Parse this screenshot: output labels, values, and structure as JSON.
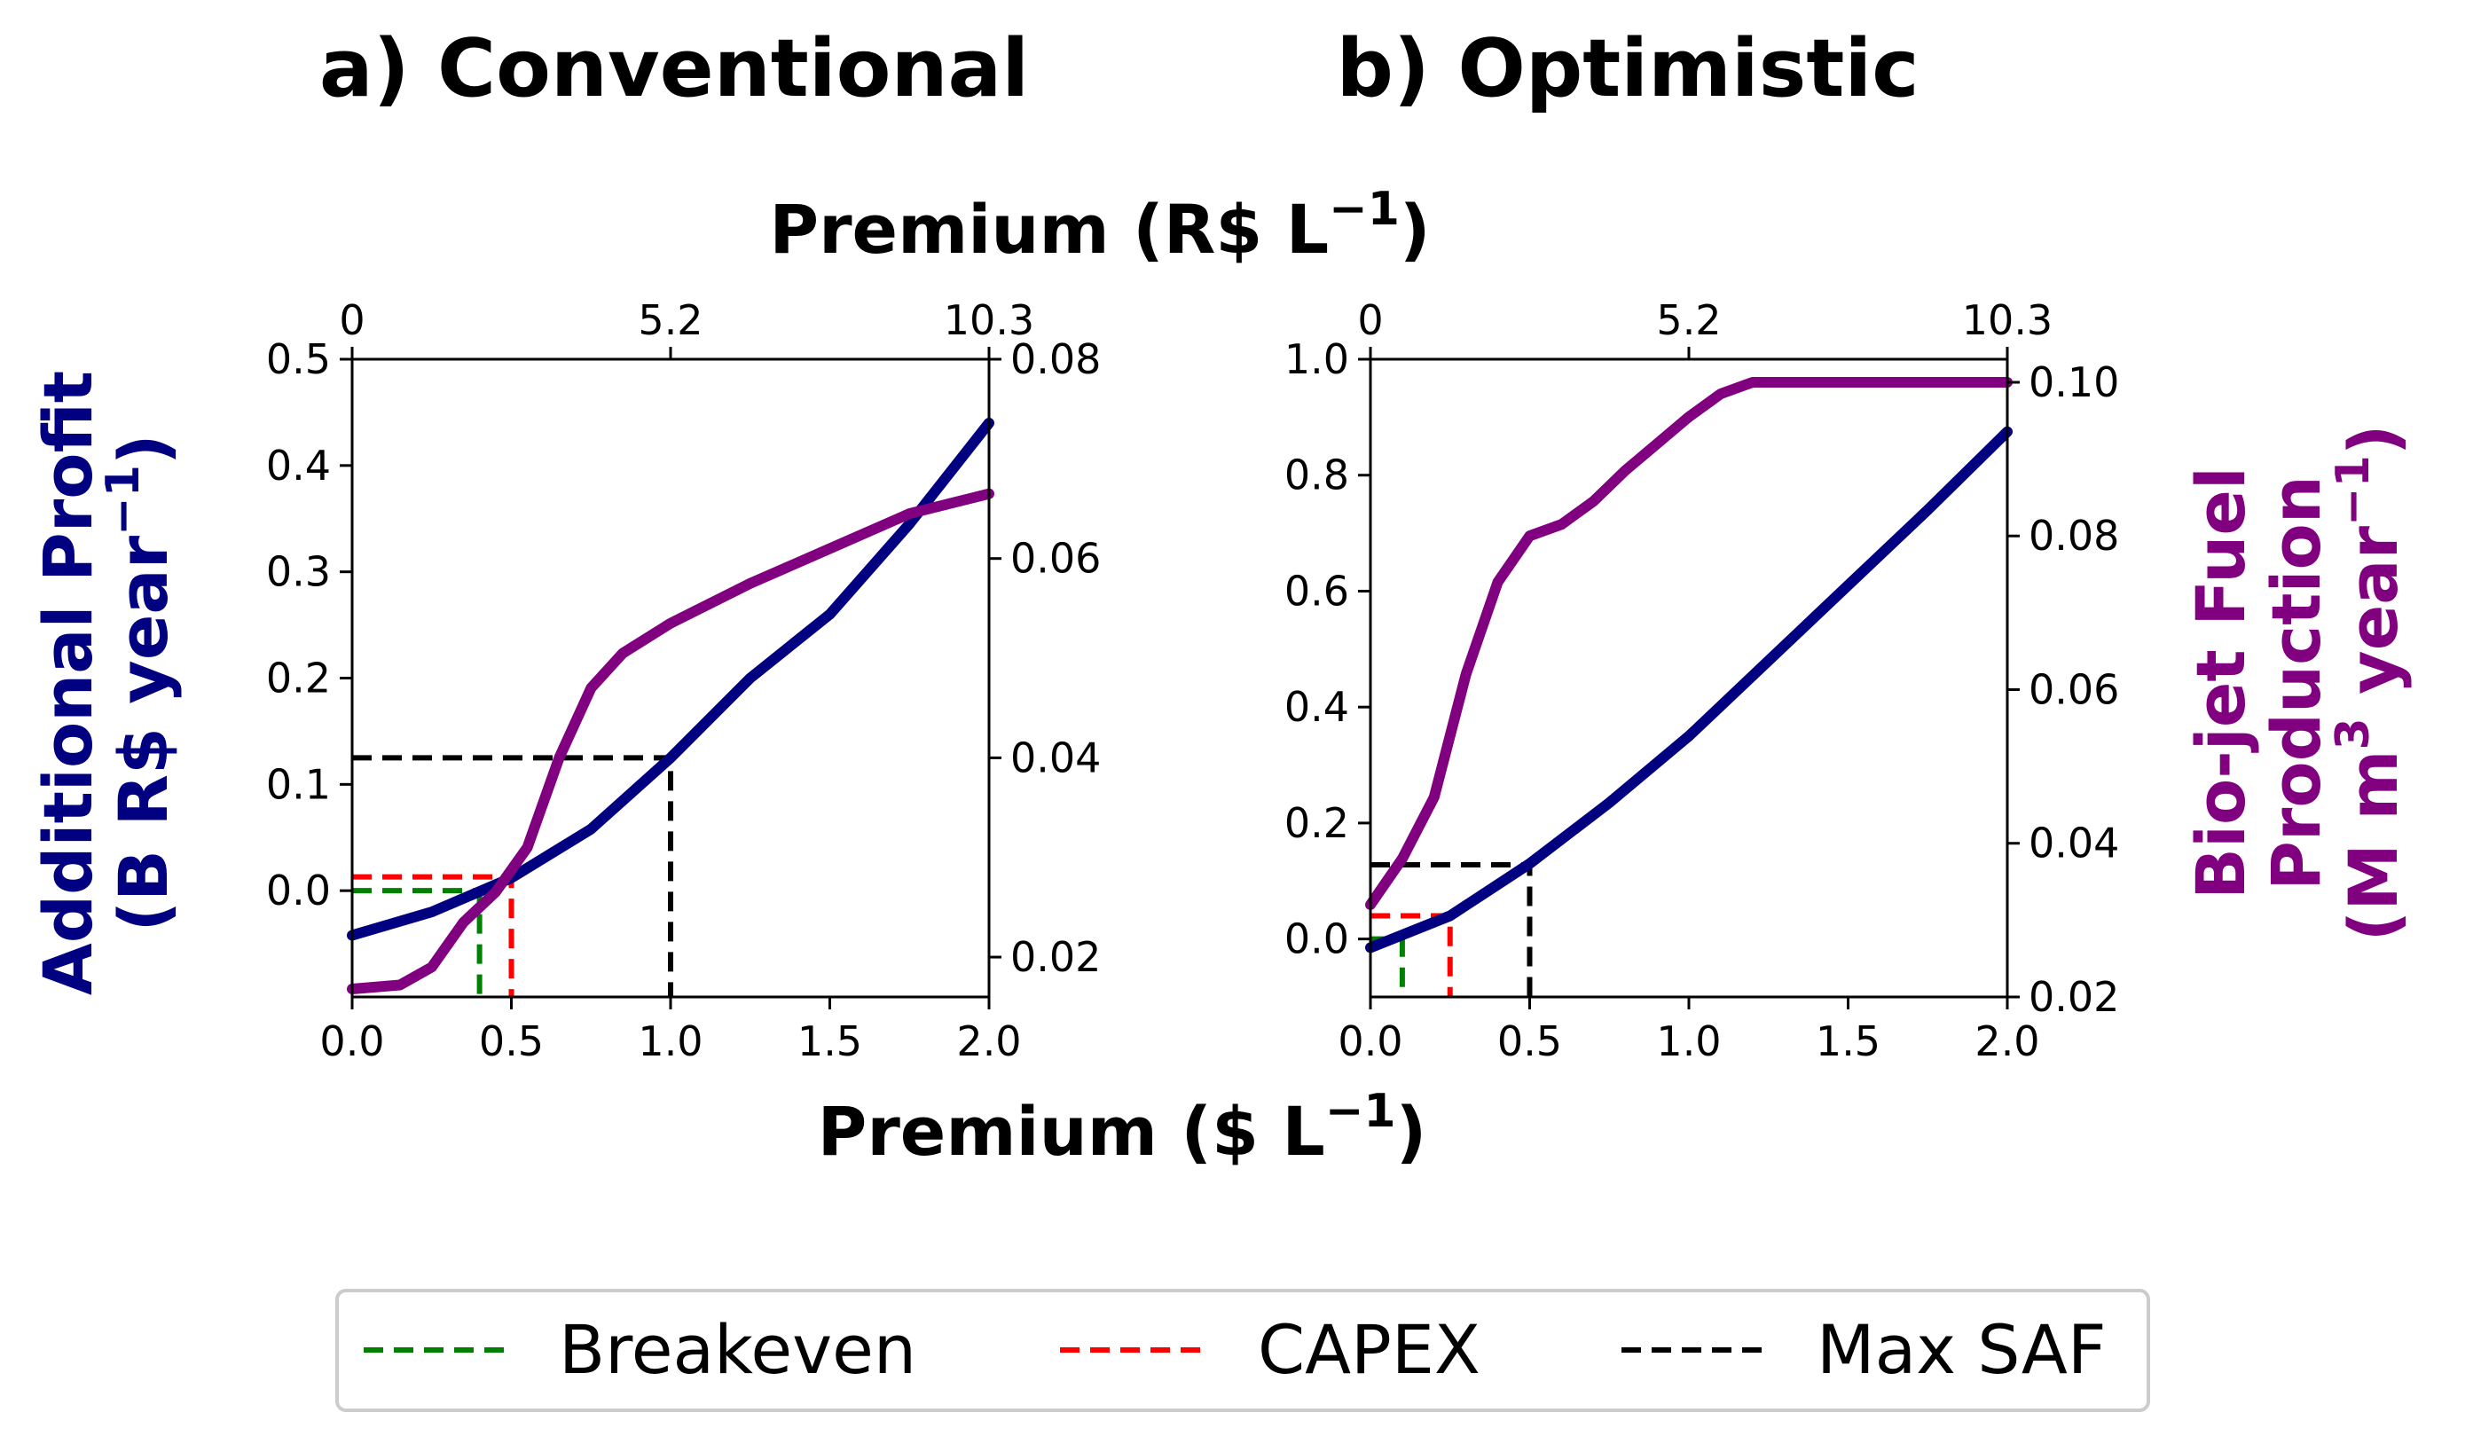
{
  "colors": {
    "profit": "#000080",
    "production": "#800080",
    "breakeven": "#008000",
    "capex": "#ff0000",
    "maxsaf": "#000000"
  },
  "shared_labels": {
    "x_top": "Premium (R$ L",
    "x_top_sup": "−1",
    "x_top_close": ")",
    "x_bottom": "Premium ($ L",
    "x_bottom_sup": "−1",
    "x_bottom_close": ")",
    "y_left_line1": "Additional Profit",
    "y_left_line2": "(B R$ year",
    "y_left_sup": "−1",
    "y_left_close": ")",
    "y_right_line1": "Bio-jet Fuel",
    "y_right_line2": "Production",
    "y_right_line3a": "(M m",
    "y_right_sup1": "3",
    "y_right_line3b": " year",
    "y_right_sup2": "−1",
    "y_right_close": ")"
  },
  "legend": {
    "placement": "bottom-center",
    "entries": [
      {
        "label": "Breakeven",
        "color": "#008000"
      },
      {
        "label": "CAPEX",
        "color": "#ff0000"
      },
      {
        "label": "Max SAF",
        "color": "#000000"
      }
    ]
  },
  "chart_data": [
    {
      "type": "line",
      "title": "a) Conventional",
      "xlim": [
        0,
        2.0
      ],
      "x_ticks": [
        "0.0",
        "0.5",
        "1.0",
        "1.5",
        "2.0"
      ],
      "x_top_ticks": [
        "0",
        "5.2",
        "10.3"
      ],
      "ylim_left": [
        -0.1,
        0.5
      ],
      "y_left_ticks": [
        "0.0",
        "0.1",
        "0.2",
        "0.3",
        "0.4",
        "0.5"
      ],
      "ylim_right": [
        0.016,
        0.08
      ],
      "y_right_ticks": [
        "0.02",
        "0.04",
        "0.06",
        "0.08"
      ],
      "series": [
        {
          "axis": "left",
          "x": [
            0,
            0.25,
            0.5,
            0.75,
            1.0,
            1.25,
            1.5,
            1.75,
            2.0
          ],
          "y": [
            -0.042,
            -0.02,
            0.012,
            0.058,
            0.125,
            0.2,
            0.26,
            0.345,
            0.44
          ]
        },
        {
          "axis": "right",
          "x": [
            0,
            0.15,
            0.25,
            0.35,
            0.45,
            0.55,
            0.65,
            0.75,
            0.85,
            1.0,
            1.25,
            1.5,
            1.75,
            2.0
          ],
          "y": [
            0.0168,
            0.0172,
            0.019,
            0.0235,
            0.0265,
            0.031,
            0.04,
            0.047,
            0.0505,
            0.0535,
            0.0575,
            0.061,
            0.0645,
            0.0665
          ]
        }
      ],
      "reference_lines": [
        {
          "name": "Breakeven",
          "x": 0.4,
          "y": 0.0
        },
        {
          "name": "CAPEX",
          "x": 0.5,
          "y": 0.013
        },
        {
          "name": "Max SAF",
          "x": 1.0,
          "y": 0.125
        }
      ]
    },
    {
      "type": "line",
      "title": "b) Optimistic",
      "xlim": [
        0,
        2.0
      ],
      "x_ticks": [
        "0.0",
        "0.5",
        "1.0",
        "1.5",
        "2.0"
      ],
      "x_top_ticks": [
        "0",
        "5.2",
        "10.3"
      ],
      "ylim_left": [
        -0.1,
        1.0
      ],
      "y_left_ticks": [
        "0.0",
        "0.2",
        "0.4",
        "0.6",
        "0.8",
        "1.0"
      ],
      "ylim_right": [
        0.02,
        0.103
      ],
      "y_right_ticks": [
        "0.02",
        "0.04",
        "0.06",
        "0.08",
        "0.10"
      ],
      "series": [
        {
          "axis": "left",
          "x": [
            0,
            0.25,
            0.5,
            0.75,
            1.0,
            1.25,
            1.5,
            1.75,
            2.0
          ],
          "y": [
            -0.015,
            0.04,
            0.13,
            0.235,
            0.35,
            0.48,
            0.61,
            0.74,
            0.875
          ]
        },
        {
          "axis": "right",
          "x": [
            0,
            0.1,
            0.2,
            0.3,
            0.4,
            0.5,
            0.6,
            0.7,
            0.8,
            0.9,
            1.0,
            1.1,
            1.2,
            2.0
          ],
          "y": [
            0.032,
            0.038,
            0.046,
            0.062,
            0.074,
            0.08,
            0.0815,
            0.0845,
            0.0885,
            0.092,
            0.0955,
            0.0985,
            0.1,
            0.1
          ]
        }
      ],
      "reference_lines": [
        {
          "name": "Breakeven",
          "x": 0.1,
          "y": 0.0
        },
        {
          "name": "CAPEX",
          "x": 0.25,
          "y": 0.04
        },
        {
          "name": "Max SAF",
          "x": 0.5,
          "y": 0.128
        }
      ]
    }
  ]
}
